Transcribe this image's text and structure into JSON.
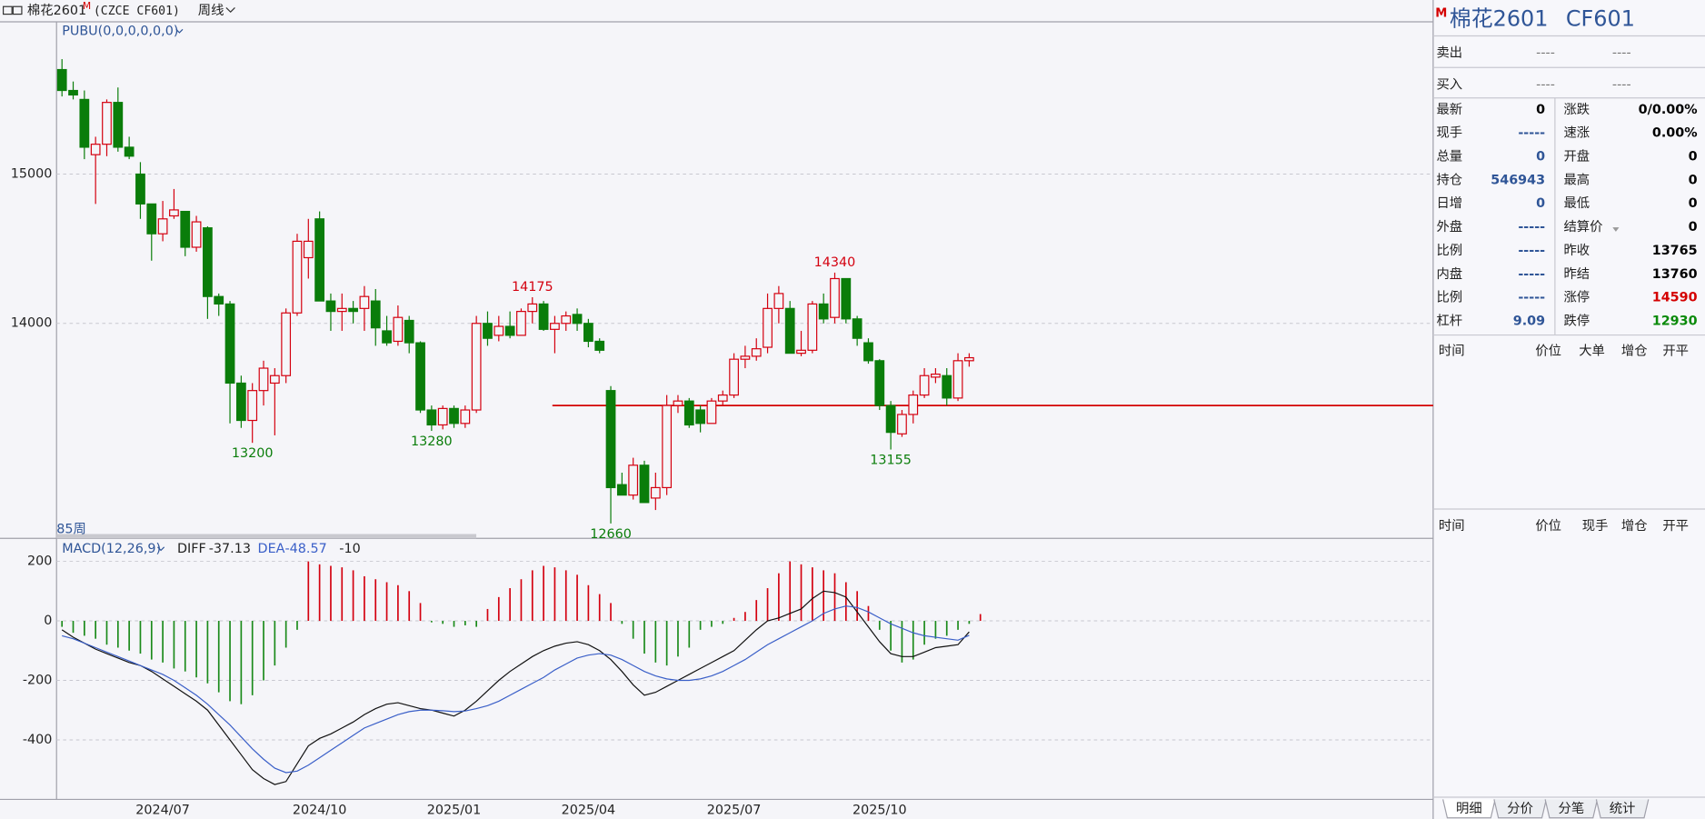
{
  "header": {
    "symbol": "棉花2601",
    "marker": "M",
    "exchange_code": "(CZCE CF601)",
    "period": "周线"
  },
  "chart_data": [
    {
      "type": "candlestick",
      "title": "PUBU(0,0,0,0,0,0)",
      "period_label": "85周",
      "up_color": "#d4000f",
      "down_color": "#0a7d0a",
      "open": [
        15700,
        15560,
        15500,
        15130,
        15200,
        15480,
        15180,
        15000,
        14800,
        14600,
        14720,
        14750,
        14510,
        14640,
        14180,
        14130,
        13600,
        13350,
        13550,
        13600,
        13650,
        14070,
        14440,
        14700,
        14150,
        14080,
        14100,
        14100,
        14150,
        13950,
        13880,
        14020,
        13870,
        13420,
        13320,
        13430,
        13330,
        13420,
        14000,
        13920,
        13980,
        13920,
        14080,
        14130,
        13960,
        14000,
        14060,
        14000,
        13880,
        13550,
        12920,
        12850,
        13050,
        12830,
        12900,
        13450,
        13480,
        13420,
        13330,
        13480,
        13520,
        13760,
        13780,
        13840,
        14100,
        14100,
        13800,
        13820,
        14130,
        14040,
        14300,
        14030,
        13870,
        13750,
        13450,
        13260,
        13390,
        13520,
        13640,
        13650,
        13500,
        13750
      ],
      "high": [
        15770,
        15620,
        15560,
        15250,
        15500,
        15580,
        15250,
        15080,
        14800,
        14820,
        14900,
        14750,
        14720,
        14650,
        14200,
        14150,
        13650,
        13600,
        13750,
        13700,
        14100,
        14600,
        14700,
        14750,
        14200,
        14200,
        14150,
        14250,
        14230,
        14050,
        14120,
        14050,
        13880,
        13450,
        13450,
        13450,
        13450,
        14050,
        14080,
        14050,
        14080,
        14100,
        14175,
        14150,
        14050,
        14080,
        14100,
        14030,
        13900,
        13580,
        13000,
        13100,
        13080,
        13000,
        13520,
        13520,
        13500,
        13450,
        13500,
        13550,
        13800,
        13850,
        13900,
        14200,
        14250,
        14150,
        13950,
        14150,
        14200,
        14340,
        14300,
        14050,
        13900,
        13760,
        13480,
        13420,
        13550,
        13700,
        13700,
        13700,
        13800,
        13800
      ],
      "low": [
        15520,
        15500,
        15100,
        14800,
        15120,
        15150,
        15100,
        14700,
        14420,
        14550,
        14700,
        14450,
        14480,
        14030,
        14050,
        13330,
        13300,
        13200,
        13450,
        13250,
        13600,
        14050,
        14300,
        14150,
        13950,
        13950,
        14000,
        13950,
        13850,
        13850,
        13850,
        13800,
        13400,
        13280,
        13290,
        13300,
        13300,
        13400,
        13850,
        13880,
        13900,
        13920,
        14000,
        13950,
        13800,
        13950,
        13950,
        13840,
        13800,
        12660,
        12850,
        12820,
        12800,
        12750,
        12850,
        13400,
        13300,
        13270,
        13330,
        13450,
        13500,
        13700,
        13750,
        13800,
        14000,
        13800,
        13780,
        13800,
        14000,
        14000,
        14000,
        13850,
        13730,
        13420,
        13155,
        13240,
        13330,
        13500,
        13600,
        13450,
        13480,
        13710
      ],
      "close": [
        15560,
        15530,
        15180,
        15200,
        15480,
        15180,
        15120,
        14800,
        14600,
        14700,
        14760,
        14510,
        14680,
        14180,
        14130,
        13600,
        13350,
        13550,
        13700,
        13650,
        14070,
        14550,
        14550,
        14150,
        14080,
        14100,
        14080,
        14180,
        13970,
        13870,
        14040,
        13870,
        13420,
        13320,
        13430,
        13330,
        13420,
        14000,
        13900,
        13980,
        13920,
        14080,
        14130,
        13960,
        14000,
        14050,
        14000,
        13880,
        13820,
        12900,
        12850,
        13050,
        12800,
        12900,
        13450,
        13480,
        13320,
        13330,
        13480,
        13520,
        13760,
        13780,
        13830,
        14100,
        14200,
        13800,
        13820,
        14130,
        14030,
        14300,
        14030,
        13900,
        13750,
        13450,
        13270,
        13390,
        13520,
        13650,
        13660,
        13500,
        13750,
        13770
      ],
      "annotations": [
        13200,
        13280,
        14175,
        12660,
        14340,
        13155
      ],
      "reference_line": {
        "value": 13450,
        "color": "#d40000"
      },
      "ylim": [
        12560,
        16020
      ],
      "yticks": [
        14000,
        15000
      ],
      "grid": true
    },
    {
      "type": "macd",
      "title": "MACD(12,26,9)",
      "categories": [
        null,
        null,
        null,
        null,
        null,
        null,
        null,
        null,
        null,
        "2024/07",
        null,
        null,
        null,
        null,
        null,
        null,
        null,
        null,
        null,
        null,
        null,
        null,
        null,
        "2024/10",
        null,
        null,
        null,
        null,
        null,
        null,
        null,
        null,
        null,
        null,
        null,
        "2025/01",
        null,
        null,
        null,
        null,
        null,
        null,
        null,
        null,
        null,
        null,
        null,
        "2025/04",
        null,
        null,
        null,
        null,
        null,
        null,
        null,
        null,
        null,
        null,
        null,
        null,
        "2025/07",
        null,
        null,
        null,
        null,
        null,
        null,
        null,
        null,
        null,
        null,
        null,
        null,
        "2025/10",
        null,
        null,
        null,
        null,
        null,
        null,
        null,
        null
      ],
      "series": [
        {
          "name": "DIFF",
          "color": "#111111",
          "values": [
            -30,
            -55,
            -75,
            -95,
            -110,
            -125,
            -140,
            -150,
            -170,
            -195,
            -220,
            -245,
            -270,
            -300,
            -350,
            -400,
            -450,
            -500,
            -530,
            -550,
            -540,
            -480,
            -420,
            -395,
            -380,
            -360,
            -340,
            -315,
            -295,
            -280,
            -275,
            -285,
            -295,
            -300,
            -310,
            -320,
            -300,
            -270,
            -235,
            -200,
            -170,
            -145,
            -120,
            -100,
            -85,
            -75,
            -70,
            -80,
            -100,
            -130,
            -170,
            -215,
            -250,
            -240,
            -220,
            -200,
            -180,
            -160,
            -140,
            -120,
            -100,
            -65,
            -30,
            0,
            10,
            25,
            40,
            75,
            100,
            95,
            80,
            30,
            -20,
            -70,
            -110,
            -120,
            -120,
            -105,
            -90,
            -85,
            -80,
            -37.13
          ]
        },
        {
          "name": "DEA",
          "color": "#3a5fc8",
          "values": [
            -50,
            -60,
            -75,
            -90,
            -105,
            -120,
            -135,
            -150,
            -165,
            -180,
            -200,
            -225,
            -250,
            -280,
            -315,
            -350,
            -390,
            -430,
            -465,
            -495,
            -510,
            -505,
            -485,
            -460,
            -435,
            -410,
            -385,
            -360,
            -345,
            -330,
            -315,
            -305,
            -300,
            -300,
            -302,
            -305,
            -303,
            -295,
            -285,
            -270,
            -250,
            -230,
            -210,
            -190,
            -165,
            -145,
            -125,
            -115,
            -110,
            -115,
            -130,
            -150,
            -170,
            -185,
            -195,
            -200,
            -200,
            -195,
            -185,
            -170,
            -150,
            -130,
            -105,
            -80,
            -60,
            -40,
            -20,
            0,
            25,
            40,
            50,
            45,
            30,
            10,
            -10,
            -25,
            -40,
            -50,
            -55,
            -60,
            -65,
            -48.57
          ]
        }
      ],
      "histogram": {
        "up_color": "#d4000f",
        "down_color": "#1a8a1a",
        "values": [
          -20,
          -40,
          -50,
          -60,
          -80,
          -90,
          -100,
          -110,
          -130,
          -140,
          -160,
          -170,
          -190,
          -210,
          -240,
          -270,
          -280,
          -250,
          -200,
          -150,
          -90,
          -30,
          200,
          190,
          185,
          180,
          170,
          150,
          140,
          130,
          120,
          100,
          60,
          -5,
          -10,
          -20,
          -15,
          -20,
          40,
          80,
          110,
          140,
          170,
          185,
          180,
          170,
          155,
          120,
          90,
          60,
          -10,
          -60,
          -110,
          -140,
          -150,
          -120,
          -90,
          -30,
          -20,
          -10,
          10,
          30,
          70,
          110,
          160,
          200,
          190,
          180,
          170,
          160,
          130,
          100,
          50,
          -30,
          -100,
          -140,
          -130,
          -80,
          -60,
          -50,
          -30,
          -10,
          22.89
        ]
      },
      "ylim": [
        -600,
        270
      ],
      "yticks": [
        -400,
        -200,
        0,
        200
      ],
      "grid": true
    }
  ],
  "quote": {
    "marker": "M",
    "name": "棉花2601",
    "code": "CF601",
    "sell": {
      "label": "卖出",
      "price": "----",
      "volume": "----"
    },
    "buy": {
      "label": "买入",
      "price": "----",
      "volume": "----"
    },
    "rows": [
      [
        {
          "label": "最新",
          "value": 0,
          "color": "#000000"
        },
        {
          "label": "涨跌",
          "value": "0/0.00%",
          "color": "#000000"
        }
      ],
      [
        {
          "label": "现手",
          "value": "-----",
          "color": "#2f5597"
        },
        {
          "label": "速涨",
          "value": "0.00%",
          "color": "#000000"
        }
      ],
      [
        {
          "label": "总量",
          "value": 0,
          "color": "#2f5597"
        },
        {
          "label": "开盘",
          "value": 0,
          "color": "#000000"
        }
      ],
      [
        {
          "label": "持仓",
          "value": 546943,
          "color": "#2f5597"
        },
        {
          "label": "最高",
          "value": 0,
          "color": "#000000"
        }
      ],
      [
        {
          "label": "日增",
          "value": 0,
          "color": "#2f5597"
        },
        {
          "label": "最低",
          "value": 0,
          "color": "#000000"
        }
      ],
      [
        {
          "label": "外盘",
          "value": "-----",
          "color": "#2f5597"
        },
        {
          "label": "结算价",
          "value": 0,
          "color": "#000000"
        }
      ],
      [
        {
          "label": "比例",
          "value": "-----",
          "color": "#2f5597"
        },
        {
          "label": "昨收",
          "value": 13765,
          "color": "#000000"
        }
      ],
      [
        {
          "label": "内盘",
          "value": "-----",
          "color": "#2f5597"
        },
        {
          "label": "昨结",
          "value": 13760,
          "color": "#000000"
        }
      ],
      [
        {
          "label": "比例",
          "value": "-----",
          "color": "#2f5597"
        },
        {
          "label": "涨停",
          "value": 14590,
          "color": "#d40000"
        }
      ],
      [
        {
          "label": "杠杆",
          "value": 9.09,
          "color": "#2f5597"
        },
        {
          "label": "跌停",
          "value": 12930,
          "color": "#0a8a0a"
        }
      ]
    ],
    "ticks_header": [
      "时间",
      "价位",
      "大单",
      "增仓",
      "开平"
    ],
    "detail_header": [
      "时间",
      "价位",
      "现手",
      "增仓",
      "开平"
    ],
    "tabs": [
      "明细",
      "分价",
      "分笔",
      "统计"
    ]
  }
}
